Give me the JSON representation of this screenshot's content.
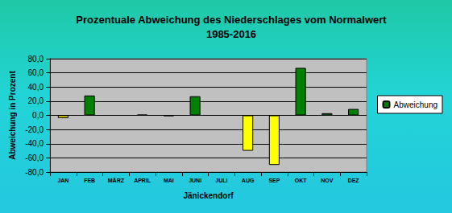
{
  "chart_data": {
    "type": "bar",
    "title": "Prozentuale Abweichung des Niederschlages vom Normalwert\n1985-2016",
    "x_label": "Jänickendorf",
    "y_label": "Abweichung in Prozent",
    "categories": [
      "JAN",
      "FEB",
      "MÄRZ",
      "APRIL",
      "MAI",
      "JUNI",
      "JULI",
      "AUG",
      "SEP",
      "OKT",
      "NOV",
      "DEZ"
    ],
    "series": [
      {
        "name": "Abweichung",
        "color": "#008000",
        "colors": [
          "#ffff00",
          "#008000",
          "#008000",
          "#008000",
          "#008000",
          "#008000",
          "#008000",
          "#ffff00",
          "#ffff00",
          "#008000",
          "#008000",
          "#008000"
        ],
        "values": [
          -4,
          28,
          0,
          1,
          -1,
          27,
          0,
          -50,
          -70,
          67,
          3,
          9
        ]
      }
    ],
    "ylim": [
      -80,
      80
    ],
    "yticks": [
      {
        "value": -80,
        "label": "-80,0"
      },
      {
        "value": -60,
        "label": "-60,0"
      },
      {
        "value": -40,
        "label": "-40,0"
      },
      {
        "value": -20,
        "label": "-20,0"
      },
      {
        "value": 0,
        "label": "0,0"
      },
      {
        "value": 20,
        "label": "20,0"
      },
      {
        "value": 40,
        "label": "40,0"
      },
      {
        "value": 60,
        "label": "60,0"
      },
      {
        "value": 80,
        "label": "80,0"
      }
    ],
    "grid": true,
    "legend": "right"
  }
}
